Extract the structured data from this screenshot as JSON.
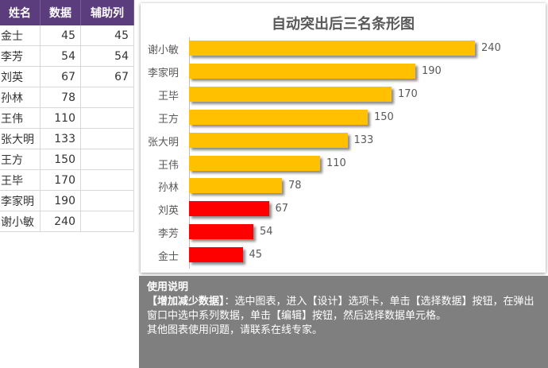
{
  "table": {
    "headers": [
      "姓名",
      "数据",
      "辅助列"
    ],
    "rows": [
      {
        "name": "金士",
        "value": "45",
        "aux": "45"
      },
      {
        "name": "李芳",
        "value": "54",
        "aux": "54"
      },
      {
        "name": "刘英",
        "value": "67",
        "aux": "67"
      },
      {
        "name": "孙林",
        "value": "78",
        "aux": ""
      },
      {
        "name": "王伟",
        "value": "110",
        "aux": ""
      },
      {
        "name": "张大明",
        "value": "133",
        "aux": ""
      },
      {
        "name": "王方",
        "value": "150",
        "aux": ""
      },
      {
        "name": "王毕",
        "value": "170",
        "aux": ""
      },
      {
        "name": "李家明",
        "value": "190",
        "aux": ""
      },
      {
        "name": "谢小敏",
        "value": "240",
        "aux": ""
      }
    ]
  },
  "chart_data": {
    "type": "bar",
    "orientation": "horizontal",
    "title": "自动突出后三名条形图",
    "categories": [
      "谢小敏",
      "李家明",
      "王毕",
      "王方",
      "张大明",
      "王伟",
      "孙林",
      "刘英",
      "李芳",
      "金士"
    ],
    "values": [
      240,
      190,
      170,
      150,
      133,
      110,
      78,
      67,
      54,
      45
    ],
    "highlighted": [
      false,
      false,
      false,
      false,
      false,
      false,
      false,
      true,
      true,
      true
    ],
    "colors": {
      "normal": "#ffc000",
      "highlight": "#ff0000"
    },
    "xlim": [
      0,
      240
    ],
    "grid": false,
    "legend": "none"
  },
  "info": {
    "heading": "使用说明",
    "line1_bold": "【增加减少数据】",
    "line1_rest": "：选中图表，进入【设计】选项卡，单击【选择数据】按钮，在弹出窗口中选中系列数据，单击【编辑】按钮，然后选择数据单元格。",
    "line2": "其他图表使用问题，请联系在线专家。"
  }
}
